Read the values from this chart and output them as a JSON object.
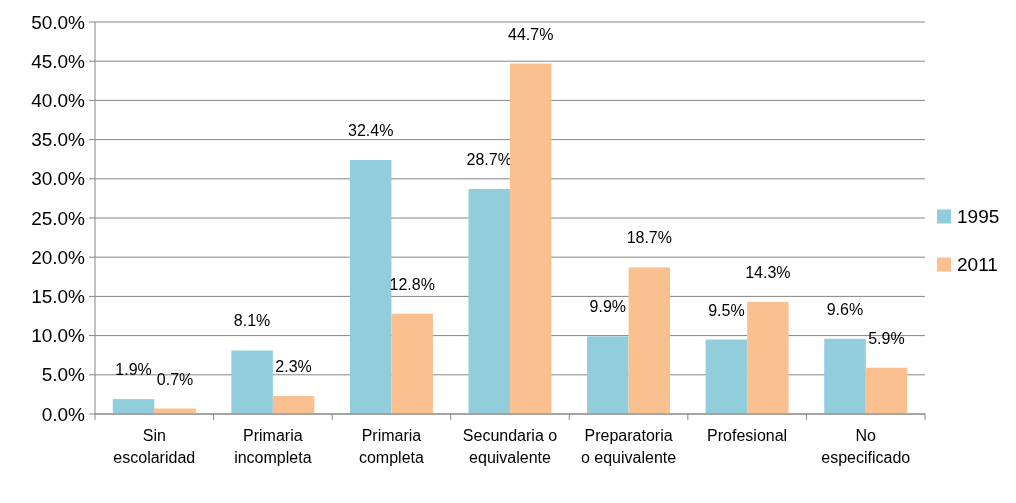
{
  "chart_data": {
    "type": "bar",
    "categories": [
      "Sin escolaridad",
      "Primaria incompleta",
      "Primaria completa",
      "Secundaria o equivalente",
      "Preparatoria o equivalente",
      "Profesional",
      "No especificado"
    ],
    "series": [
      {
        "name": "1995",
        "color": "#92cddc",
        "values": [
          1.9,
          8.1,
          32.4,
          28.7,
          9.9,
          9.5,
          9.6
        ],
        "value_labels": [
          "1.9%",
          "8.1%",
          "32.4%",
          "28.7%",
          "9.9%",
          "9.5%",
          "9.6%"
        ]
      },
      {
        "name": "2011",
        "color": "#fac090",
        "values": [
          0.7,
          2.3,
          12.8,
          44.7,
          18.7,
          14.3,
          5.9
        ],
        "value_labels": [
          "0.7%",
          "2.3%",
          "12.8%",
          "44.7%",
          "18.7%",
          "14.3%",
          "5.9%"
        ]
      }
    ],
    "ylim": [
      0,
      50
    ],
    "yticks": [
      {
        "value": 0,
        "label": "0.0%"
      },
      {
        "value": 5,
        "label": "5.0%"
      },
      {
        "value": 10,
        "label": "10.0%"
      },
      {
        "value": 15,
        "label": "15.0%"
      },
      {
        "value": 20,
        "label": "20.0%"
      },
      {
        "value": 25,
        "label": "25.0%"
      },
      {
        "value": 30,
        "label": "30.0%"
      },
      {
        "value": 35,
        "label": "35.0%"
      },
      {
        "value": 40,
        "label": "40.0%"
      },
      {
        "value": 45,
        "label": "45.0%"
      },
      {
        "value": 50,
        "label": "50.0%"
      }
    ],
    "grid": "y",
    "legend": "right"
  }
}
